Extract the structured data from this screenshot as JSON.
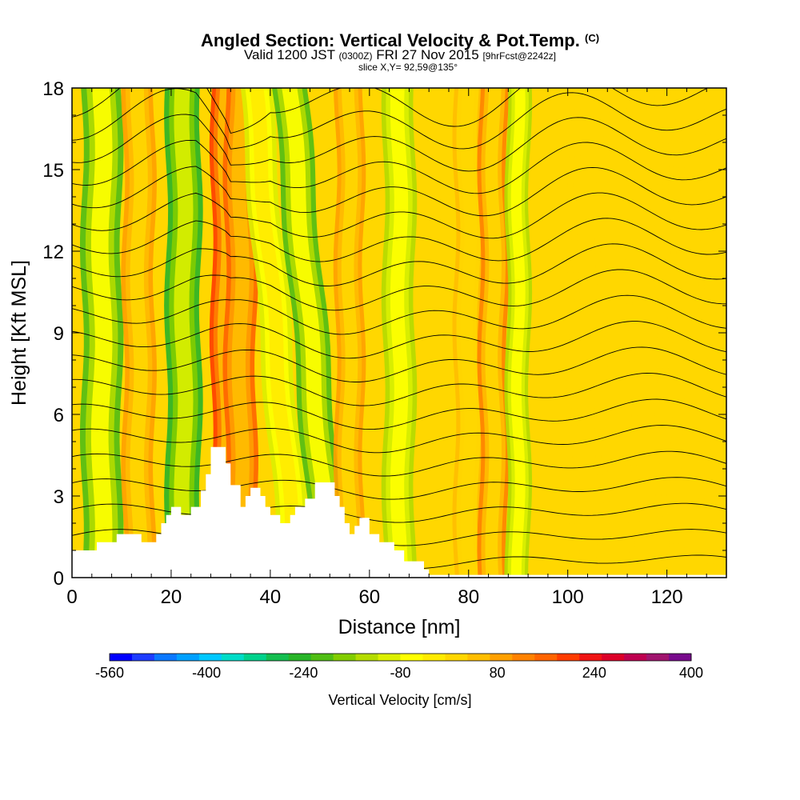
{
  "chart_data": {
    "type": "heatmap",
    "title": "Angled Section: Vertical Velocity & Pot.Temp.",
    "title_unit": "(C)",
    "subtitle": {
      "valid_prefix": "Valid 1200 JST",
      "utc": "(0300Z)",
      "date": "FRI 27 Nov 2015",
      "forecast": "[9hrFcst@2242z]"
    },
    "slice": "slice X,Y= 92,59@135°",
    "xlabel": "Distance [nm]",
    "ylabel": "Height [Kft MSL]",
    "xlim": [
      0,
      132
    ],
    "ylim": [
      0,
      18
    ],
    "x_ticks": [
      "0",
      "20",
      "40",
      "60",
      "80",
      "100",
      "120"
    ],
    "y_ticks": [
      "0",
      "3",
      "6",
      "9",
      "12",
      "15",
      "18"
    ],
    "colorbar": {
      "label": "Vertical Velocity [cm/s]",
      "min": -560,
      "max": 400,
      "step": 40,
      "tick_labels": [
        "-560",
        "-400",
        "-240",
        "-80",
        "80",
        "240",
        "400"
      ],
      "colors": [
        "#0000ff",
        "#1e3cff",
        "#0a78ff",
        "#00a0ff",
        "#00c8ff",
        "#00dcc8",
        "#00d28c",
        "#14be50",
        "#28b428",
        "#50be14",
        "#82cd00",
        "#b4dc00",
        "#dcf000",
        "#ffff00",
        "#ffeb00",
        "#ffd700",
        "#ffbe00",
        "#ffa000",
        "#ff8200",
        "#ff6400",
        "#ff3c00",
        "#f01414",
        "#dc0028",
        "#be0050",
        "#a0146e",
        "#780a8c"
      ]
    },
    "terrain_profile": [
      [
        0,
        1.0
      ],
      [
        5,
        1.0
      ],
      [
        5,
        1.3
      ],
      [
        9,
        1.3
      ],
      [
        9,
        1.6
      ],
      [
        14,
        1.6
      ],
      [
        14,
        1.3
      ],
      [
        17,
        1.3
      ],
      [
        17,
        1.6
      ],
      [
        18,
        1.6
      ],
      [
        18,
        2.0
      ],
      [
        19,
        2.0
      ],
      [
        19,
        2.3
      ],
      [
        20,
        2.3
      ],
      [
        20,
        2.6
      ],
      [
        22,
        2.6
      ],
      [
        22,
        2.3
      ],
      [
        24,
        2.3
      ],
      [
        24,
        2.6
      ],
      [
        26,
        2.6
      ],
      [
        26,
        3.2
      ],
      [
        27,
        3.2
      ],
      [
        27,
        3.8
      ],
      [
        28,
        3.8
      ],
      [
        28,
        4.8
      ],
      [
        31,
        4.8
      ],
      [
        31,
        4.2
      ],
      [
        32,
        4.2
      ],
      [
        32,
        3.4
      ],
      [
        34,
        3.4
      ],
      [
        34,
        2.6
      ],
      [
        35,
        2.6
      ],
      [
        35,
        3.0
      ],
      [
        36,
        3.0
      ],
      [
        36,
        3.3
      ],
      [
        38,
        3.3
      ],
      [
        38,
        3.0
      ],
      [
        39,
        3.0
      ],
      [
        39,
        2.6
      ],
      [
        40,
        2.6
      ],
      [
        40,
        2.3
      ],
      [
        42,
        2.3
      ],
      [
        42,
        2.0
      ],
      [
        44,
        2.0
      ],
      [
        44,
        2.3
      ],
      [
        45,
        2.3
      ],
      [
        45,
        2.6
      ],
      [
        47,
        2.6
      ],
      [
        47,
        2.9
      ],
      [
        49,
        2.9
      ],
      [
        49,
        3.5
      ],
      [
        53,
        3.5
      ],
      [
        53,
        3.0
      ],
      [
        54,
        3.0
      ],
      [
        54,
        2.6
      ],
      [
        55,
        2.6
      ],
      [
        55,
        2.0
      ],
      [
        56,
        2.0
      ],
      [
        56,
        1.6
      ],
      [
        57,
        1.6
      ],
      [
        57,
        1.9
      ],
      [
        58,
        1.9
      ],
      [
        58,
        2.2
      ],
      [
        60,
        2.2
      ],
      [
        60,
        1.6
      ],
      [
        62,
        1.6
      ],
      [
        62,
        1.3
      ],
      [
        65,
        1.3
      ],
      [
        65,
        1.0
      ],
      [
        67,
        1.0
      ],
      [
        67,
        0.6
      ],
      [
        71,
        0.6
      ],
      [
        71,
        0.3
      ],
      [
        72,
        0.3
      ],
      [
        72,
        0.1
      ],
      [
        132,
        0.1
      ]
    ],
    "w_bands": [
      {
        "x": 6,
        "width": 2.5,
        "w": -200
      },
      {
        "x": 13.5,
        "width": 2.0,
        "w": 130
      },
      {
        "x": 22.5,
        "width": 2.2,
        "w": -240
      },
      {
        "x": 31,
        "width": 1.8,
        "w": 260
      },
      {
        "x": 34,
        "width": 2.0,
        "w": 200
      },
      {
        "x": 41,
        "width": 2.0,
        "w": -80
      },
      {
        "x": 48,
        "width": 2.2,
        "w": -180
      },
      {
        "x": 56,
        "width": 1.8,
        "w": 120
      },
      {
        "x": 66,
        "width": 2.0,
        "w": -100
      },
      {
        "x": 80,
        "width": 1.8,
        "w": 80
      },
      {
        "x": 85,
        "width": 1.8,
        "w": 160
      },
      {
        "x": 90,
        "width": 1.5,
        "w": -120
      },
      {
        "x": 104,
        "width": 2.5,
        "w": 60
      },
      {
        "x": 116,
        "width": 2.5,
        "w": 60
      },
      {
        "x": 125,
        "width": 2.5,
        "w": 70
      }
    ],
    "theta_levels": [
      12,
      14,
      16,
      18,
      20,
      22,
      24,
      26,
      28,
      30,
      32,
      34,
      36,
      38,
      40,
      42,
      44,
      46,
      48,
      50
    ]
  }
}
